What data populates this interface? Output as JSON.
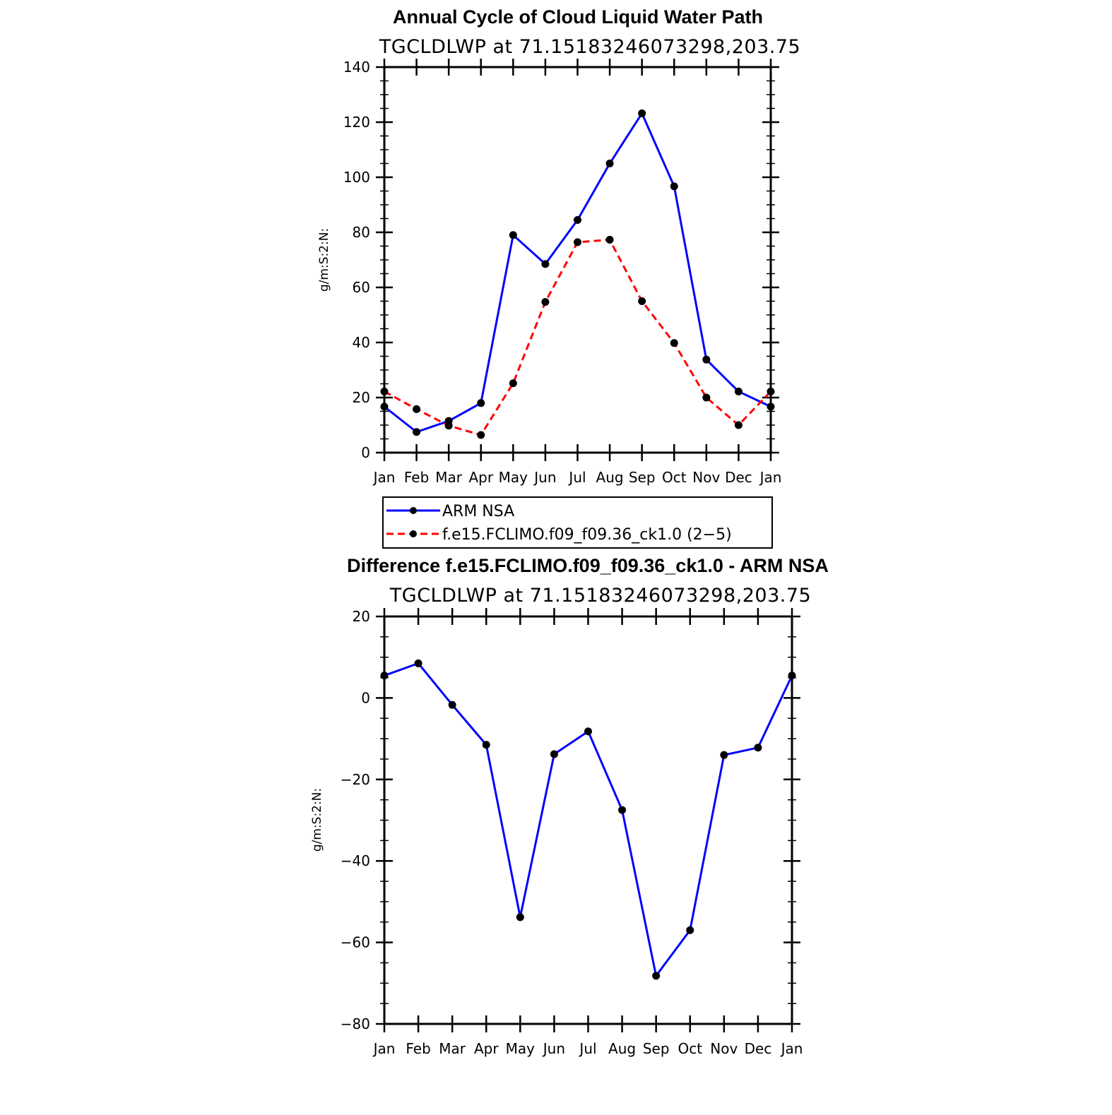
{
  "chart_data": [
    {
      "type": "line",
      "title": "Annual Cycle of Cloud Liquid Water Path",
      "subtitle": "TGCLDLWP at 71.15183246073298,203.75",
      "ylabel": "g/m:S:2:N:",
      "xlabel": "",
      "categories": [
        "Jan",
        "Feb",
        "Mar",
        "Apr",
        "May",
        "Jun",
        "Jul",
        "Aug",
        "Sep",
        "Oct",
        "Nov",
        "Dec",
        "Jan"
      ],
      "ylim": [
        0,
        140
      ],
      "yticks": [
        "0",
        "20",
        "40",
        "60",
        "80",
        "100",
        "120",
        "140"
      ],
      "series": [
        {
          "name": "ARM NSA",
          "color": "#0000ff",
          "dash": "solid",
          "values": [
            16.7,
            7.5,
            11.5,
            18,
            79,
            68.5,
            84.5,
            105,
            123.2,
            96.7,
            33.8,
            22.2,
            16.7
          ]
        },
        {
          "name": "f.e15.FCLIMO.f09_f09.36_ck1.0 (2−5)",
          "color": "#ff0000",
          "dash": "dashed",
          "values": [
            22.2,
            15.8,
            9.8,
            6.4,
            25.2,
            54.7,
            76.4,
            77.3,
            55,
            39.8,
            20,
            10,
            22.2
          ]
        }
      ],
      "legend": {
        "position": "below",
        "entries": [
          "ARM NSA",
          "f.e15.FCLIMO.f09_f09.36_ck1.0 (2−5)"
        ]
      }
    },
    {
      "type": "line",
      "title": "Difference f.e15.FCLIMO.f09_f09.36_ck1.0 - ARM NSA",
      "subtitle": "TGCLDLWP at 71.15183246073298,203.75",
      "ylabel": "g/m:S:2:N:",
      "xlabel": "",
      "categories": [
        "Jan",
        "Feb",
        "Mar",
        "Apr",
        "May",
        "Jun",
        "Jul",
        "Aug",
        "Sep",
        "Oct",
        "Nov",
        "Dec",
        "Jan"
      ],
      "ylim": [
        -80,
        20
      ],
      "yticks": [
        "−80",
        "−60",
        "−40",
        "−20",
        "0",
        "20"
      ],
      "series": [
        {
          "name": "Difference",
          "color": "#0000ff",
          "dash": "solid",
          "values": [
            5.5,
            8.5,
            -1.7,
            -11.5,
            -53.8,
            -13.8,
            -8.2,
            -27.5,
            -68.2,
            -57,
            -14,
            -12.2,
            5.5
          ]
        }
      ]
    }
  ]
}
